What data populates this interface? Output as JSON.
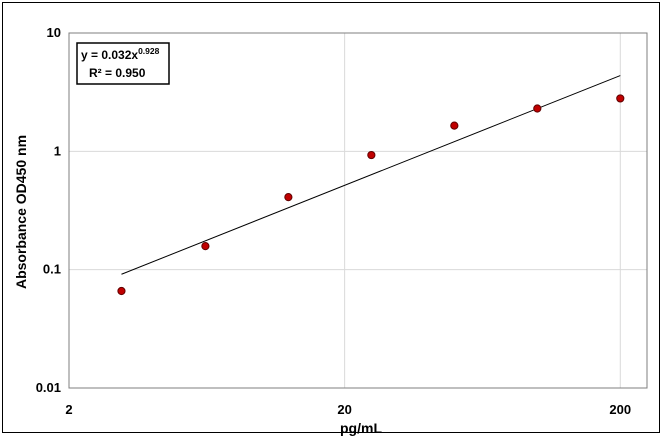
{
  "chart_data": {
    "type": "scatter",
    "title": "",
    "xlabel": "pg/mL",
    "ylabel": "Absorbance OD450 nm",
    "x_scale": "log",
    "y_scale": "log",
    "xlim": [
      2,
      250
    ],
    "ylim": [
      0.01,
      10
    ],
    "grid": true,
    "x_ticks": [
      2,
      20,
      200
    ],
    "x_tick_labels": [
      "2",
      "20",
      "200"
    ],
    "y_ticks": [
      0.01,
      0.1,
      1,
      10
    ],
    "y_tick_labels": [
      "0.01",
      "0.1",
      "1",
      "10"
    ],
    "series": [
      {
        "points": [
          {
            "x": 3.1,
            "y": 0.066
          },
          {
            "x": 6.25,
            "y": 0.158
          },
          {
            "x": 12.5,
            "y": 0.41
          },
          {
            "x": 25,
            "y": 0.93
          },
          {
            "x": 50,
            "y": 1.65
          },
          {
            "x": 100,
            "y": 2.3
          },
          {
            "x": 200,
            "y": 2.8
          }
        ],
        "color": "#c00000"
      }
    ],
    "trendline": {
      "type": "power",
      "coef": 0.032,
      "exponent": 0.928,
      "x_range": [
        3.1,
        200
      ],
      "color": "#000000"
    },
    "annotation": {
      "eq_prefix": "y = 0.032x",
      "eq_exponent": "0.928",
      "r2": "R² = 0.950"
    }
  }
}
